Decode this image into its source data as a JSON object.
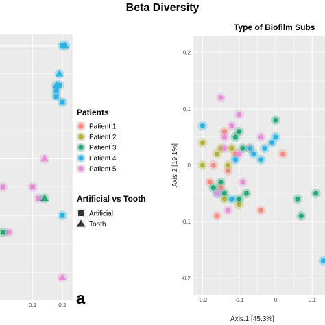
{
  "figure": {
    "title": "Beta Diversity",
    "panel_label": "a"
  },
  "legend": {
    "patients_title": "Patients",
    "patients": [
      {
        "label": "Patient 1",
        "color": "#f08c80"
      },
      {
        "label": "Patient 2",
        "color": "#b3b33a"
      },
      {
        "label": "Patient 3",
        "color": "#27a676"
      },
      {
        "label": "Patient 4",
        "color": "#2bb4e3"
      },
      {
        "label": "Patient 5",
        "color": "#e58fd6"
      }
    ],
    "shape_title": "Artificial vs Tooth",
    "shapes": [
      {
        "label": "Artificial",
        "shape": "square"
      },
      {
        "label": "Tooth",
        "shape": "triangle"
      }
    ]
  },
  "chart_data": [
    {
      "type": "scatter",
      "title": "",
      "xlabel": "",
      "ylabel": "",
      "x_ticks": [
        0.1,
        0.2
      ],
      "xlim": [
        -0.01,
        0.235
      ],
      "ylim": [
        -0.25,
        0.22
      ],
      "grid": true,
      "series": [
        {
          "name": "Patient 4",
          "shape": "square",
          "points": [
            [
              0.2,
              0.2
            ],
            [
              0.19,
              0.13
            ],
            [
              0.2,
              0.1
            ],
            [
              0.18,
              0.12
            ],
            [
              0.18,
              0.11
            ],
            [
              0.2,
              -0.1
            ]
          ]
        },
        {
          "name": "Patient 4",
          "shape": "triangle",
          "points": [
            [
              0.21,
              0.2
            ],
            [
              0.19,
              0.15
            ],
            [
              0.18,
              0.13
            ]
          ]
        },
        {
          "name": "Patient 5",
          "shape": "triangle",
          "points": [
            [
              0.14,
              0.0
            ],
            [
              0.2,
              -0.21
            ]
          ]
        },
        {
          "name": "Patient 5",
          "shape": "square",
          "points": [
            [
              0.0,
              -0.05
            ],
            [
              0.1,
              -0.05
            ],
            [
              0.12,
              -0.07
            ],
            [
              0.02,
              -0.13
            ]
          ]
        },
        {
          "name": "Patient 3",
          "shape": "triangle",
          "points": [
            [
              0.14,
              -0.07
            ]
          ]
        },
        {
          "name": "Patient 3",
          "shape": "square",
          "points": [
            [
              0.0,
              -0.13
            ]
          ]
        }
      ]
    },
    {
      "type": "scatter",
      "title": "Type of Biofilm Subs",
      "xlabel": "Axis.1   [45.3%]",
      "ylabel": "Axis.2   [19.1%]",
      "x_ticks": [
        -0.2,
        -0.1,
        0.0,
        0.1
      ],
      "y_ticks": [
        0.2,
        0.1,
        0.0,
        -0.1,
        -0.2
      ],
      "xlim": [
        -0.225,
        0.135
      ],
      "ylim": [
        -0.23,
        0.23
      ],
      "grid": true,
      "series": [
        {
          "name": "Patient 1",
          "points": [
            [
              -0.14,
              0.06
            ],
            [
              -0.11,
              0.02
            ],
            [
              -0.07,
              0.03
            ],
            [
              0.02,
              0.02
            ],
            [
              -0.04,
              -0.08
            ],
            [
              -0.16,
              -0.09
            ],
            [
              -0.13,
              -0.01
            ],
            [
              -0.15,
              -0.04
            ],
            [
              -0.17,
              0.0
            ],
            [
              -0.18,
              -0.03
            ]
          ]
        },
        {
          "name": "Patient 2",
          "points": [
            [
              -0.2,
              0.04
            ],
            [
              -0.2,
              0.0
            ],
            [
              -0.15,
              0.03
            ],
            [
              -0.12,
              0.03
            ],
            [
              -0.13,
              0.0
            ],
            [
              -0.1,
              -0.07
            ],
            [
              -0.14,
              -0.06
            ],
            [
              -0.16,
              0.02
            ]
          ]
        },
        {
          "name": "Patient 3",
          "points": [
            [
              -0.1,
              0.06
            ],
            [
              -0.11,
              0.05
            ],
            [
              -0.09,
              0.03
            ],
            [
              0.0,
              0.08
            ],
            [
              -0.15,
              -0.03
            ],
            [
              -0.17,
              -0.04
            ],
            [
              -0.14,
              -0.05
            ],
            [
              -0.1,
              -0.06
            ],
            [
              -0.08,
              -0.05
            ],
            [
              0.06,
              -0.06
            ],
            [
              0.07,
              -0.09
            ],
            [
              0.11,
              -0.05
            ]
          ]
        },
        {
          "name": "Patient 4",
          "points": [
            [
              -0.2,
              0.07
            ],
            [
              -0.11,
              0.01
            ],
            [
              -0.07,
              0.03
            ],
            [
              -0.06,
              0.02
            ],
            [
              -0.01,
              0.04
            ],
            [
              0.0,
              0.05
            ],
            [
              -0.03,
              0.03
            ],
            [
              -0.04,
              0.01
            ],
            [
              -0.16,
              -0.05
            ],
            [
              -0.12,
              -0.06
            ],
            [
              0.13,
              -0.17
            ]
          ]
        },
        {
          "name": "Patient 5",
          "points": [
            [
              -0.15,
              0.12
            ],
            [
              -0.1,
              0.09
            ],
            [
              -0.12,
              0.07
            ],
            [
              -0.14,
              0.05
            ],
            [
              -0.1,
              0.02
            ],
            [
              -0.14,
              0.03
            ],
            [
              -0.16,
              -0.05
            ],
            [
              -0.13,
              -0.08
            ],
            [
              -0.09,
              -0.03
            ],
            [
              -0.04,
              0.05
            ]
          ]
        }
      ]
    }
  ]
}
